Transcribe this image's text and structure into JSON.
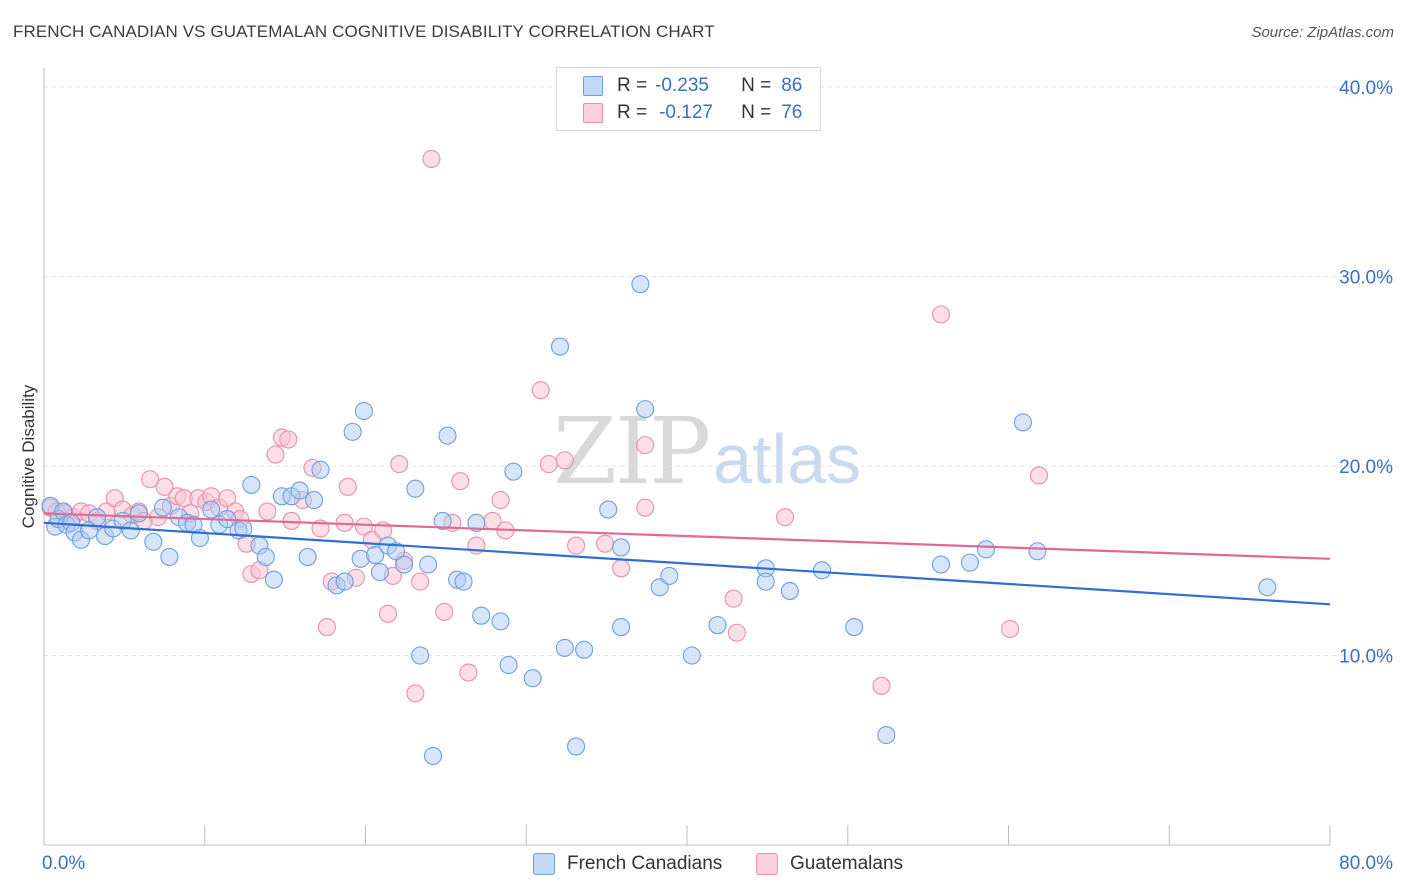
{
  "title": "FRENCH CANADIAN VS GUATEMALAN COGNITIVE DISABILITY CORRELATION CHART",
  "source": "Source: ZipAtlas.com",
  "watermark": {
    "zip": "ZIP",
    "atlas": "atlas"
  },
  "legend_top": [
    {
      "r_label": "R =",
      "r_value": "-0.235",
      "n_label": "N =",
      "n_value": "86"
    },
    {
      "r_label": "R =",
      "r_value": "-0.127",
      "n_label": "N =",
      "n_value": "76"
    }
  ],
  "legend_bottom": [
    "French Canadians",
    "Guatemalans"
  ],
  "colors": {
    "blue_fill": "#aecbf2",
    "blue_stroke": "#6f9fdf",
    "blue_line": "#2f6fcf",
    "pink_fill": "#f7c3d2",
    "pink_stroke": "#e891ad",
    "pink_line": "#e06a93",
    "tick_label": "#3a6fc4",
    "grid": "#e5e5e5"
  },
  "chart_data": {
    "type": "scatter",
    "title": "FRENCH CANADIAN VS GUATEMALAN COGNITIVE DISABILITY CORRELATION CHART",
    "xlabel": "",
    "ylabel": "Cognitive Disability",
    "xlim": [
      0,
      80
    ],
    "ylim": [
      0,
      41
    ],
    "x_tick_labels": [
      "0.0%",
      "80.0%"
    ],
    "y_ticks": [
      10,
      20,
      30,
      40
    ],
    "y_tick_labels": [
      "10.0%",
      "20.0%",
      "30.0%",
      "40.0%"
    ],
    "grid": "horizontal dashed",
    "series": [
      {
        "name": "French Canadians",
        "color": "#aecbf2",
        "trend": {
          "x": [
            0,
            80
          ],
          "y": [
            17.0,
            12.7
          ]
        },
        "points": [
          [
            0.4,
            17.9
          ],
          [
            0.7,
            16.8
          ],
          [
            0.9,
            17.2
          ],
          [
            1.2,
            17.6
          ],
          [
            1.4,
            16.9
          ],
          [
            1.7,
            17.0
          ],
          [
            1.9,
            16.5
          ],
          [
            2.3,
            16.1
          ],
          [
            2.8,
            16.6
          ],
          [
            3.3,
            17.3
          ],
          [
            3.8,
            16.3
          ],
          [
            4.3,
            16.7
          ],
          [
            4.9,
            17.1
          ],
          [
            5.4,
            16.6
          ],
          [
            5.9,
            17.5
          ],
          [
            6.8,
            16.0
          ],
          [
            7.4,
            17.8
          ],
          [
            7.8,
            15.2
          ],
          [
            8.4,
            17.3
          ],
          [
            8.9,
            17.0
          ],
          [
            9.3,
            16.9
          ],
          [
            9.7,
            16.2
          ],
          [
            10.4,
            17.7
          ],
          [
            10.9,
            16.9
          ],
          [
            11.4,
            17.2
          ],
          [
            12.1,
            16.6
          ],
          [
            12.4,
            16.7
          ],
          [
            12.9,
            19.0
          ],
          [
            13.4,
            15.8
          ],
          [
            13.8,
            15.2
          ],
          [
            14.3,
            14.0
          ],
          [
            14.8,
            18.4
          ],
          [
            15.4,
            18.4
          ],
          [
            15.9,
            18.7
          ],
          [
            16.4,
            15.2
          ],
          [
            16.8,
            18.2
          ],
          [
            17.2,
            19.8
          ],
          [
            18.2,
            13.7
          ],
          [
            18.7,
            13.9
          ],
          [
            19.2,
            21.8
          ],
          [
            19.7,
            15.1
          ],
          [
            19.9,
            22.9
          ],
          [
            20.6,
            15.3
          ],
          [
            20.9,
            14.4
          ],
          [
            21.4,
            15.8
          ],
          [
            21.9,
            15.5
          ],
          [
            22.4,
            14.8
          ],
          [
            23.1,
            18.8
          ],
          [
            23.4,
            10.0
          ],
          [
            23.9,
            14.8
          ],
          [
            24.2,
            4.7
          ],
          [
            24.8,
            17.1
          ],
          [
            25.1,
            21.6
          ],
          [
            25.7,
            14.0
          ],
          [
            26.1,
            13.9
          ],
          [
            26.9,
            17.0
          ],
          [
            27.2,
            12.1
          ],
          [
            28.4,
            11.8
          ],
          [
            28.9,
            9.5
          ],
          [
            29.2,
            19.7
          ],
          [
            30.4,
            8.8
          ],
          [
            32.1,
            26.3
          ],
          [
            32.4,
            10.4
          ],
          [
            33.1,
            5.2
          ],
          [
            33.6,
            10.3
          ],
          [
            35.1,
            17.7
          ],
          [
            35.9,
            11.5
          ],
          [
            35.9,
            15.7
          ],
          [
            37.1,
            29.6
          ],
          [
            37.4,
            23.0
          ],
          [
            38.3,
            13.6
          ],
          [
            38.9,
            14.2
          ],
          [
            40.3,
            10.0
          ],
          [
            41.9,
            11.6
          ],
          [
            44.9,
            14.6
          ],
          [
            44.9,
            13.9
          ],
          [
            46.4,
            13.4
          ],
          [
            48.4,
            14.5
          ],
          [
            50.4,
            11.5
          ],
          [
            52.4,
            5.8
          ],
          [
            55.8,
            14.8
          ],
          [
            57.6,
            14.9
          ],
          [
            58.6,
            15.6
          ],
          [
            60.9,
            22.3
          ],
          [
            61.8,
            15.5
          ],
          [
            76.1,
            13.6
          ]
        ]
      },
      {
        "name": "Guatemalans",
        "color": "#f7c3d2",
        "trend": {
          "x": [
            0,
            80
          ],
          "y": [
            17.5,
            15.1
          ]
        },
        "points": [
          [
            0.4,
            17.8
          ],
          [
            0.8,
            17.6
          ],
          [
            1.3,
            17.5
          ],
          [
            1.8,
            17.3
          ],
          [
            2.3,
            17.6
          ],
          [
            2.8,
            17.5
          ],
          [
            3.3,
            17.1
          ],
          [
            3.9,
            17.6
          ],
          [
            4.4,
            18.3
          ],
          [
            4.9,
            17.7
          ],
          [
            5.5,
            17.4
          ],
          [
            5.9,
            17.6
          ],
          [
            6.2,
            17.1
          ],
          [
            6.6,
            19.3
          ],
          [
            7.1,
            17.3
          ],
          [
            7.5,
            18.9
          ],
          [
            7.9,
            17.9
          ],
          [
            8.3,
            18.4
          ],
          [
            8.7,
            18.3
          ],
          [
            9.1,
            17.5
          ],
          [
            9.6,
            18.3
          ],
          [
            10.1,
            18.1
          ],
          [
            10.4,
            18.4
          ],
          [
            10.9,
            17.8
          ],
          [
            11.4,
            18.3
          ],
          [
            11.9,
            17.6
          ],
          [
            12.2,
            17.2
          ],
          [
            12.6,
            15.9
          ],
          [
            12.9,
            14.3
          ],
          [
            13.4,
            14.5
          ],
          [
            13.9,
            17.6
          ],
          [
            14.4,
            20.6
          ],
          [
            14.8,
            21.5
          ],
          [
            15.2,
            21.4
          ],
          [
            15.4,
            17.1
          ],
          [
            16.1,
            18.2
          ],
          [
            16.7,
            19.9
          ],
          [
            17.2,
            16.7
          ],
          [
            17.6,
            11.5
          ],
          [
            17.9,
            13.9
          ],
          [
            18.7,
            17.0
          ],
          [
            18.9,
            18.9
          ],
          [
            19.4,
            14.1
          ],
          [
            19.9,
            16.8
          ],
          [
            20.4,
            16.1
          ],
          [
            21.1,
            16.6
          ],
          [
            21.4,
            12.2
          ],
          [
            21.7,
            14.2
          ],
          [
            22.1,
            20.1
          ],
          [
            22.4,
            15.0
          ],
          [
            23.1,
            8.0
          ],
          [
            23.4,
            13.9
          ],
          [
            24.1,
            36.2
          ],
          [
            24.9,
            12.3
          ],
          [
            25.4,
            17.0
          ],
          [
            25.9,
            19.2
          ],
          [
            26.4,
            9.1
          ],
          [
            26.9,
            15.8
          ],
          [
            27.9,
            17.1
          ],
          [
            28.4,
            18.2
          ],
          [
            28.7,
            16.6
          ],
          [
            30.9,
            24.0
          ],
          [
            31.4,
            20.1
          ],
          [
            32.4,
            20.3
          ],
          [
            33.1,
            15.8
          ],
          [
            34.9,
            15.9
          ],
          [
            35.9,
            14.6
          ],
          [
            37.4,
            21.1
          ],
          [
            37.4,
            17.8
          ],
          [
            42.9,
            13.0
          ],
          [
            43.1,
            11.2
          ],
          [
            46.1,
            17.3
          ],
          [
            52.1,
            8.4
          ],
          [
            55.8,
            28.0
          ],
          [
            60.1,
            11.4
          ],
          [
            61.9,
            19.5
          ]
        ]
      }
    ]
  }
}
